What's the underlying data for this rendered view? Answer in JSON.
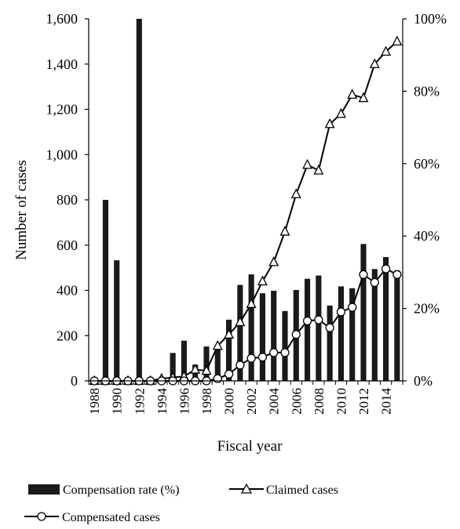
{
  "chart_data": {
    "type": "bar",
    "categories": [
      "1988",
      "1989",
      "1990",
      "1991",
      "1992",
      "1993",
      "1994",
      "1995",
      "1996",
      "1997",
      "1998",
      "1999",
      "2000",
      "2001",
      "2002",
      "2003",
      "2004",
      "2005",
      "2006",
      "2007",
      "2008",
      "2009",
      "2010",
      "2011",
      "2012",
      "2013",
      "2014",
      "2015"
    ],
    "x_tick_labels": [
      "1988",
      "1990",
      "1992",
      "1994",
      "1996",
      "1998",
      "2000",
      "2002",
      "2004",
      "2006",
      "2008",
      "2010",
      "2012",
      "2014"
    ],
    "xlabel": "Fiscal year",
    "ylabel": "Number of cases",
    "ylim": [
      0,
      1600
    ],
    "y_ticks": [
      0,
      200,
      400,
      600,
      800,
      1000,
      1200,
      1400,
      1600
    ],
    "y_tick_labels": [
      "0",
      "200",
      "400",
      "600",
      "800",
      "1,000",
      "1,200",
      "1,400",
      "1,600"
    ],
    "y2lim": [
      0,
      100
    ],
    "y2_ticks": [
      0,
      20,
      40,
      60,
      80,
      100
    ],
    "y2_tick_labels": [
      "0%",
      "20%",
      "40%",
      "60%",
      "80%",
      "100%"
    ],
    "grid": false,
    "legend_position": "bottom",
    "series": [
      {
        "name": "Compensation rate (%)",
        "type": "bar",
        "axis": "right",
        "color": "#1a1a1a",
        "values": [
          0,
          50,
          33.3,
          0,
          100,
          0,
          0,
          7.7,
          11.1,
          4.5,
          9.5,
          8.7,
          16.9,
          26.5,
          29.4,
          24.2,
          24.9,
          19.3,
          25.1,
          28.2,
          29.1,
          20.8,
          26.1,
          25.6,
          37.8,
          30.9,
          34.2,
          30.5
        ]
      },
      {
        "name": "Claimed cases",
        "type": "line",
        "axis": "left",
        "marker": "triangle",
        "values": [
          0,
          0,
          0,
          0,
          0,
          0,
          10,
          15,
          20,
          50,
          45,
          155,
          205,
          260,
          340,
          440,
          525,
          660,
          825,
          955,
          930,
          1135,
          1180,
          1265,
          1250,
          1400,
          1455,
          1500
        ]
      },
      {
        "name": "Compensated cases",
        "type": "line",
        "axis": "left",
        "marker": "circle",
        "values": [
          0,
          0,
          0,
          0,
          0,
          0,
          0,
          0,
          0,
          0,
          0,
          10,
          30,
          70,
          100,
          105,
          125,
          125,
          205,
          265,
          270,
          235,
          305,
          325,
          470,
          435,
          495,
          470
        ]
      }
    ]
  }
}
